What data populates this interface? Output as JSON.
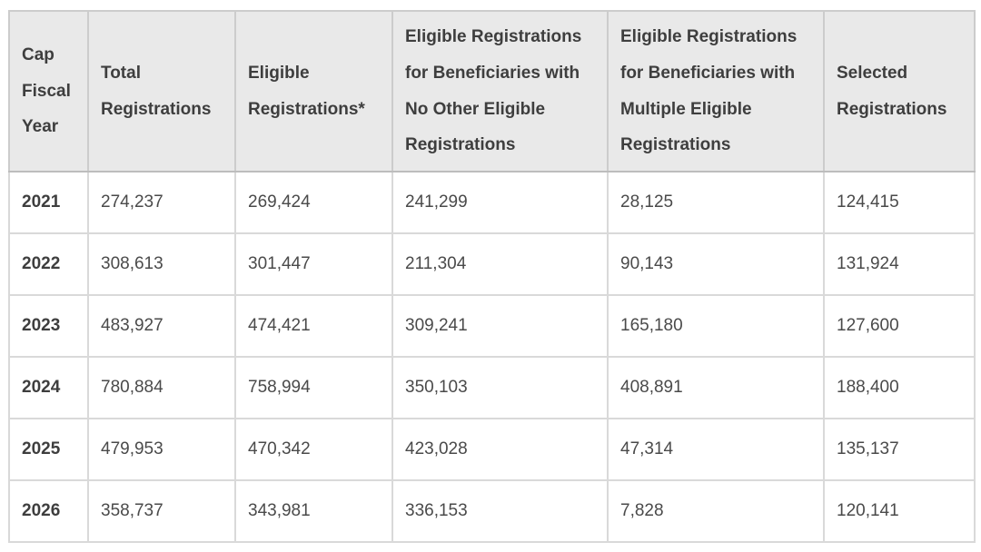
{
  "chart_data": {
    "type": "table",
    "title": "",
    "columns": [
      "Cap Fiscal Year",
      "Total Registrations",
      "Eligible Registrations*",
      "Eligible Registrations for Beneficiaries with No Other Eligible Registrations",
      "Eligible Registrations for Beneficiaries with Multiple Eligible Registrations",
      "Selected Registrations"
    ],
    "rows": [
      [
        "2021",
        "274,237",
        "269,424",
        "241,299",
        "28,125",
        "124,415"
      ],
      [
        "2022",
        "308,613",
        "301,447",
        "211,304",
        "90,143",
        "131,924"
      ],
      [
        "2023",
        "483,927",
        "474,421",
        "309,241",
        "165,180",
        "127,600"
      ],
      [
        "2024",
        "780,884",
        "758,994",
        "350,103",
        "408,891",
        "188,400"
      ],
      [
        "2025",
        "479,953",
        "470,342",
        "423,028",
        "47,314",
        "135,137"
      ],
      [
        "2026",
        "358,737",
        "343,981",
        "336,153",
        "7,828",
        "120,141"
      ]
    ],
    "grid": true,
    "header_background": "#e9e9e9",
    "header_text_color": "#3e3e3e",
    "body_text_color": "#4a4a4a",
    "border_color": "#d9d9d9"
  }
}
